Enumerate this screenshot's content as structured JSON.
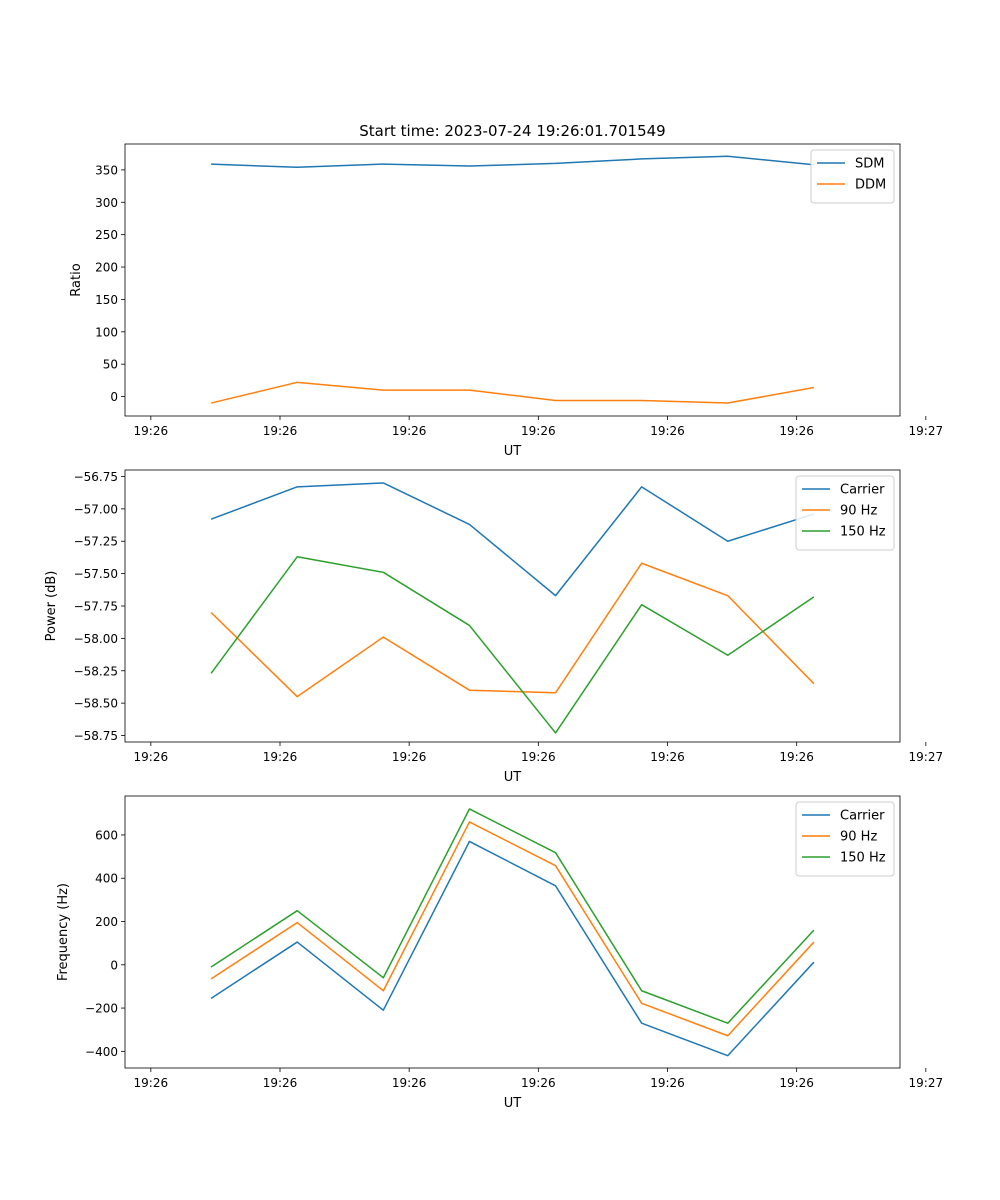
{
  "figure_title": "Start time: 2023-07-24 19:26:01.701549",
  "chart_data": [
    {
      "type": "line",
      "title": "Start time: 2023-07-24 19:26:01.701549",
      "xlabel": "UT",
      "ylabel": "Ratio",
      "x": [
        1,
        2,
        3,
        4,
        5,
        6,
        7,
        8
      ],
      "xlim": [
        0,
        9
      ],
      "x_ticks": [
        0.3,
        1.8,
        3.3,
        4.8,
        6.3,
        7.8,
        9.3
      ],
      "x_tick_labels": [
        "19:26",
        "19:26",
        "19:26",
        "19:26",
        "19:26",
        "19:26",
        "19:27"
      ],
      "ylim": [
        -30,
        390
      ],
      "y_ticks": [
        0,
        50,
        100,
        150,
        200,
        250,
        300,
        350
      ],
      "y_tick_labels": [
        "0",
        "50",
        "100",
        "150",
        "200",
        "250",
        "300",
        "350"
      ],
      "legend": "top-right",
      "series": [
        {
          "name": "SDM",
          "color": "#1f77b4",
          "values": [
            359,
            354,
            359,
            356,
            360,
            367,
            371,
            358
          ]
        },
        {
          "name": "DDM",
          "color": "#ff7f0e",
          "values": [
            -10,
            22,
            10,
            10,
            -6,
            -6,
            -10,
            14
          ]
        }
      ]
    },
    {
      "type": "line",
      "title": "",
      "xlabel": "UT",
      "ylabel": "Power (dB)",
      "x": [
        1,
        2,
        3,
        4,
        5,
        6,
        7,
        8
      ],
      "xlim": [
        0,
        9
      ],
      "x_ticks": [
        0.3,
        1.8,
        3.3,
        4.8,
        6.3,
        7.8,
        9.3
      ],
      "x_tick_labels": [
        "19:26",
        "19:26",
        "19:26",
        "19:26",
        "19:26",
        "19:26",
        "19:27"
      ],
      "ylim": [
        -58.8,
        -56.7
      ],
      "y_ticks": [
        -58.75,
        -58.5,
        -58.25,
        -58.0,
        -57.75,
        -57.5,
        -57.25,
        -57.0,
        -56.75
      ],
      "y_tick_labels": [
        "−58.75",
        "−58.50",
        "−58.25",
        "−58.00",
        "−57.75",
        "−57.50",
        "−57.25",
        "−57.00",
        "−56.75"
      ],
      "legend": "top-right",
      "series": [
        {
          "name": "Carrier",
          "color": "#1f77b4",
          "values": [
            -57.08,
            -56.83,
            -56.8,
            -57.12,
            -57.67,
            -56.83,
            -57.25,
            -57.04
          ]
        },
        {
          "name": "90 Hz",
          "color": "#ff7f0e",
          "values": [
            -57.8,
            -58.45,
            -57.99,
            -58.4,
            -58.42,
            -57.42,
            -57.67,
            -58.35
          ]
        },
        {
          "name": "150 Hz",
          "color": "#2ca02c",
          "values": [
            -58.27,
            -57.37,
            -57.49,
            -57.9,
            -58.73,
            -57.74,
            -58.13,
            -57.68
          ]
        }
      ]
    },
    {
      "type": "line",
      "title": "",
      "xlabel": "UT",
      "ylabel": "Frequency (Hz)",
      "x": [
        1,
        2,
        3,
        4,
        5,
        6,
        7,
        8
      ],
      "xlim": [
        0,
        9
      ],
      "x_ticks": [
        0.3,
        1.8,
        3.3,
        4.8,
        6.3,
        7.8,
        9.3
      ],
      "x_tick_labels": [
        "19:26",
        "19:26",
        "19:26",
        "19:26",
        "19:26",
        "19:26",
        "19:27"
      ],
      "ylim": [
        -477,
        780
      ],
      "y_ticks": [
        -400,
        -200,
        0,
        200,
        400,
        600
      ],
      "y_tick_labels": [
        "−400",
        "−200",
        "0",
        "200",
        "400",
        "600"
      ],
      "legend": "top-right",
      "series": [
        {
          "name": "Carrier",
          "color": "#1f77b4",
          "values": [
            -155,
            105,
            -210,
            570,
            365,
            -270,
            -420,
            12
          ]
        },
        {
          "name": "90 Hz",
          "color": "#ff7f0e",
          "values": [
            -65,
            195,
            -120,
            660,
            458,
            -178,
            -328,
            105
          ]
        },
        {
          "name": "150 Hz",
          "color": "#2ca02c",
          "values": [
            -10,
            250,
            -60,
            720,
            518,
            -120,
            -270,
            160
          ]
        }
      ]
    }
  ]
}
